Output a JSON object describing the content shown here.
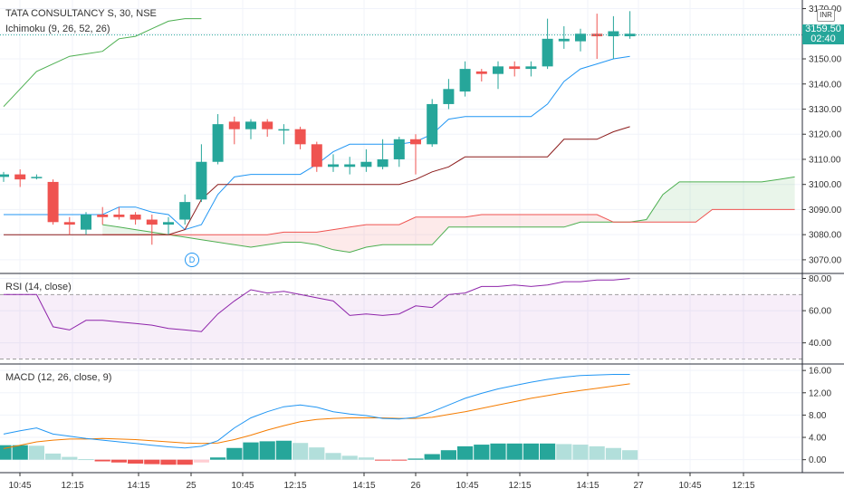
{
  "chart_data": [
    {
      "type": "candlestick",
      "title": "TATA CONSULTANCY S, 30, NSE",
      "indicator": "Ichimoku (9, 26, 52, 26)",
      "currency": "INR",
      "last_price": "3159.50",
      "countdown": "02:40",
      "event_marker": "D",
      "ylim": [
        3066,
        3172
      ],
      "y_ticks": [
        "3170.00",
        "3160.00",
        "3150.00",
        "3140.00",
        "3130.00",
        "3120.00",
        "3110.00",
        "3100.00",
        "3090.00",
        "3080.00",
        "3070.00"
      ],
      "x_ticks": [
        "10:45",
        "12:15",
        "14:15",
        "25",
        "10:45",
        "12:15",
        "14:15",
        "26",
        "10:45",
        "12:15",
        "14:15",
        "27",
        "10:45",
        "12:15"
      ],
      "candles": [
        {
          "o": 3103,
          "h": 3105,
          "l": 3101,
          "c": 3104
        },
        {
          "o": 3104,
          "h": 3106,
          "l": 3099,
          "c": 3102
        },
        {
          "o": 3103,
          "h": 3104,
          "l": 3102,
          "c": 3103
        },
        {
          "o": 3101,
          "h": 3102,
          "l": 3084,
          "c": 3085
        },
        {
          "o": 3085,
          "h": 3087,
          "l": 3080,
          "c": 3084
        },
        {
          "o": 3082,
          "h": 3089,
          "l": 3080,
          "c": 3088
        },
        {
          "o": 3088,
          "h": 3091,
          "l": 3084,
          "c": 3087
        },
        {
          "o": 3088,
          "h": 3091,
          "l": 3086,
          "c": 3087
        },
        {
          "o": 3088,
          "h": 3089,
          "l": 3084,
          "c": 3086
        },
        {
          "o": 3086,
          "h": 3088,
          "l": 3076,
          "c": 3084
        },
        {
          "o": 3084,
          "h": 3087,
          "l": 3080,
          "c": 3085
        },
        {
          "o": 3086,
          "h": 3096,
          "l": 3084,
          "c": 3093
        },
        {
          "o": 3094,
          "h": 3116,
          "l": 3093,
          "c": 3109
        },
        {
          "o": 3109,
          "h": 3128,
          "l": 3108,
          "c": 3124
        },
        {
          "o": 3125,
          "h": 3127,
          "l": 3116,
          "c": 3122
        },
        {
          "o": 3122,
          "h": 3126,
          "l": 3118,
          "c": 3125
        },
        {
          "o": 3125,
          "h": 3126,
          "l": 3119,
          "c": 3122
        },
        {
          "o": 3122,
          "h": 3124,
          "l": 3116,
          "c": 3122
        },
        {
          "o": 3122,
          "h": 3123,
          "l": 3114,
          "c": 3116
        },
        {
          "o": 3116,
          "h": 3117,
          "l": 3105,
          "c": 3107
        },
        {
          "o": 3107,
          "h": 3112,
          "l": 3105,
          "c": 3108
        },
        {
          "o": 3107,
          "h": 3111,
          "l": 3104,
          "c": 3108
        },
        {
          "o": 3107,
          "h": 3114,
          "l": 3105,
          "c": 3109
        },
        {
          "o": 3107,
          "h": 3118,
          "l": 3106,
          "c": 3110
        },
        {
          "o": 3110,
          "h": 3119,
          "l": 3107,
          "c": 3118
        },
        {
          "o": 3118,
          "h": 3120,
          "l": 3104,
          "c": 3116
        },
        {
          "o": 3116,
          "h": 3134,
          "l": 3115,
          "c": 3132
        },
        {
          "o": 3132,
          "h": 3142,
          "l": 3130,
          "c": 3138
        },
        {
          "o": 3137,
          "h": 3149,
          "l": 3135,
          "c": 3146
        },
        {
          "o": 3145,
          "h": 3146,
          "l": 3141,
          "c": 3144
        },
        {
          "o": 3144,
          "h": 3149,
          "l": 3138,
          "c": 3147
        },
        {
          "o": 3147,
          "h": 3149,
          "l": 3143,
          "c": 3146
        },
        {
          "o": 3146,
          "h": 3149,
          "l": 3143,
          "c": 3147
        },
        {
          "o": 3147,
          "h": 3166,
          "l": 3146,
          "c": 3158
        },
        {
          "o": 3157,
          "h": 3163,
          "l": 3154,
          "c": 3158
        },
        {
          "o": 3157,
          "h": 3162,
          "l": 3153,
          "c": 3160
        },
        {
          "o": 3160,
          "h": 3168,
          "l": 3150,
          "c": 3159
        },
        {
          "o": 3159,
          "h": 3167,
          "l": 3150,
          "c": 3161
        },
        {
          "o": 3159,
          "h": 3169,
          "l": 3158,
          "c": 3160
        }
      ],
      "colors": {
        "up": "#26a69a",
        "down": "#ef5350",
        "conversion": "#2196f3",
        "base": "#8b1a1a",
        "lagging": "#4caf50",
        "span_a": "#4caf50",
        "span_b": "#ef5350"
      }
    },
    {
      "type": "line",
      "title": "RSI (14, close)",
      "ylim": [
        28,
        82
      ],
      "y_ticks": [
        "80.00",
        "60.00",
        "40.00"
      ],
      "band": [
        30,
        70
      ],
      "values": [
        70,
        70,
        70,
        50,
        48,
        54,
        54,
        53,
        52,
        51,
        49,
        48,
        47,
        58,
        66,
        73,
        71,
        72,
        70,
        68,
        66,
        57,
        58,
        57,
        58,
        63,
        62,
        70,
        71,
        75,
        75,
        76,
        75,
        76,
        78,
        78,
        79,
        79,
        80
      ]
    },
    {
      "type": "line",
      "title": "MACD (12, 26, close, 9)",
      "ylim": [
        -2,
        17
      ],
      "y_ticks": [
        "16.00",
        "12.00",
        "8.00",
        "4.00",
        "0.00"
      ],
      "macd": [
        4.6,
        5.2,
        5.7,
        4.6,
        4.2,
        3.8,
        3.5,
        3.2,
        2.9,
        2.6,
        2.3,
        2.1,
        2.4,
        3.4,
        5.7,
        7.5,
        8.6,
        9.5,
        9.8,
        9.4,
        8.6,
        8.2,
        7.9,
        7.4,
        7.3,
        7.6,
        8.6,
        9.8,
        11.0,
        11.9,
        12.7,
        13.3,
        13.9,
        14.4,
        14.8,
        15.1,
        15.2,
        15.3,
        15.3
      ],
      "signal": [
        2.0,
        2.6,
        3.2,
        3.5,
        3.7,
        3.7,
        3.8,
        3.7,
        3.6,
        3.4,
        3.2,
        3.0,
        2.9,
        3.0,
        3.6,
        4.4,
        5.3,
        6.1,
        6.8,
        7.2,
        7.4,
        7.5,
        7.5,
        7.5,
        7.4,
        7.4,
        7.6,
        8.1,
        8.6,
        9.2,
        9.8,
        10.4,
        11.0,
        11.5,
        12.0,
        12.4,
        12.8,
        13.2,
        13.6
      ],
      "histogram": [
        2.6,
        2.6,
        2.5,
        1.1,
        0.5,
        0.1,
        -0.3,
        -0.5,
        -0.7,
        -0.8,
        -0.9,
        -0.9,
        -0.5,
        0.4,
        2.1,
        3.1,
        3.3,
        3.4,
        3.0,
        2.2,
        1.2,
        0.7,
        0.4,
        -0.1,
        -0.1,
        0.2,
        1.0,
        1.7,
        2.4,
        2.7,
        2.9,
        2.9,
        2.9,
        2.9,
        2.8,
        2.7,
        2.4,
        2.1,
        1.7
      ],
      "hist_colors": {
        "pos_rising": "#26a69a",
        "pos_falling": "#b2dfdb",
        "neg_falling": "#ef5350",
        "neg_rising": "#ffcdd2"
      }
    }
  ]
}
